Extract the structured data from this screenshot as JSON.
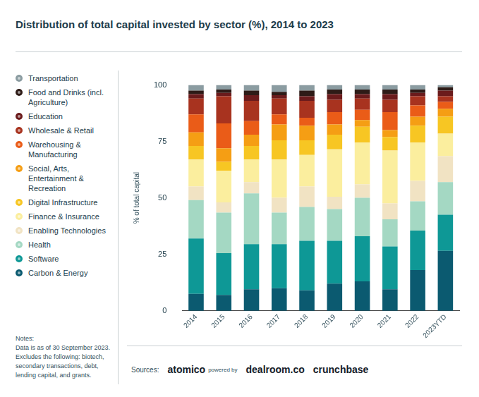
{
  "chart_data": {
    "type": "bar",
    "title": "Distribution of total capital invested by sector (%), 2014 to 2023",
    "y_label": "% of total capital",
    "stacked": true,
    "grid": false,
    "legend": "left",
    "categories": [
      "2014",
      "2015",
      "2016",
      "2017",
      "2018",
      "2019",
      "2020",
      "2021",
      "2022",
      "2023YTD"
    ],
    "ylim": [
      0,
      100
    ],
    "yticks": [
      0,
      25,
      50,
      75,
      100
    ],
    "series": [
      {
        "name": "Carbon & Energy",
        "color": "#0b5a70",
        "values": [
          7.5,
          7,
          9.5,
          10,
          9,
          12,
          13,
          9.5,
          18,
          26.5
        ]
      },
      {
        "name": "Software",
        "color": "#0e9896",
        "values": [
          24.5,
          18.5,
          20,
          19.5,
          22,
          19,
          20,
          19,
          17.5,
          16
        ]
      },
      {
        "name": "Health",
        "color": "#a4d8c3",
        "values": [
          17,
          18,
          22.5,
          14,
          15,
          14,
          17,
          12,
          13,
          14.5
        ]
      },
      {
        "name": "Enabling Technologies",
        "color": "#f1e3c3",
        "values": [
          6,
          4.5,
          5,
          6.5,
          9,
          5.5,
          6,
          7,
          9,
          11.5
        ]
      },
      {
        "name": "Finance & Insurance",
        "color": "#fbee9e",
        "values": [
          12,
          14,
          10,
          17,
          14,
          21,
          18.5,
          23.5,
          17,
          10
        ]
      },
      {
        "name": "Digital Infrastructure",
        "color": "#f7c623",
        "values": [
          6,
          4,
          6,
          8.5,
          6.5,
          6.5,
          7,
          6,
          7.5,
          7.5
        ]
      },
      {
        "name": "Social, Arts, Entertainment & Recreation",
        "color": "#f59e14",
        "values": [
          6,
          6,
          5,
          7,
          6.5,
          4.5,
          3,
          3,
          4,
          3.5
        ]
      },
      {
        "name": "Warehousing & Manufacturing",
        "color": "#ea5c18",
        "values": [
          8,
          11,
          6,
          4.5,
          3.5,
          5.5,
          4.5,
          8,
          5,
          3
        ]
      },
      {
        "name": "Wholesale & Retail",
        "color": "#a8331f",
        "values": [
          7,
          12,
          9,
          7,
          7.5,
          5.5,
          5,
          5.5,
          4,
          2.5
        ]
      },
      {
        "name": "Education",
        "color": "#6b1b1c",
        "values": [
          2,
          1.5,
          2.5,
          1.5,
          2,
          2.5,
          2,
          2.5,
          1.5,
          2.5
        ]
      },
      {
        "name": "Food and Drinks (incl. Agriculture)",
        "color": "#2e1b17",
        "values": [
          1.5,
          1.5,
          2,
          1.5,
          2.5,
          2,
          2,
          2,
          1.5,
          1.5
        ]
      },
      {
        "name": "Transportation",
        "color": "#8b9ca1",
        "values": [
          2.5,
          2,
          2.5,
          3,
          2.5,
          2,
          2,
          2,
          2,
          1
        ]
      }
    ],
    "notes": [
      "Notes:",
      "Data is as of 30 September 2023.",
      "Excludes the following: biotech, secondary transactions, debt, lending capital, and grants."
    ],
    "sources": [
      "Sources:",
      "atomico",
      "powered by",
      "dealroom.co",
      "crunchbase"
    ]
  }
}
